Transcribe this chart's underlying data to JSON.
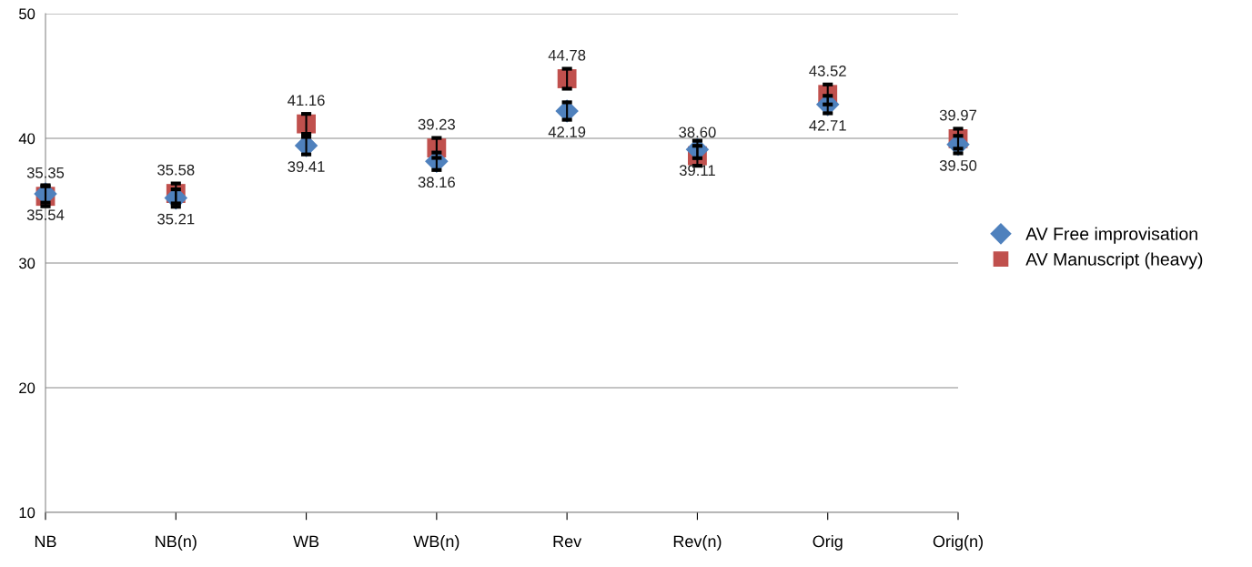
{
  "chart_data": {
    "type": "scatter",
    "categories": [
      "NB",
      "NB(n)",
      "WB",
      "WB(n)",
      "Rev",
      "Rev(n)",
      "Orig",
      "Orig(n)"
    ],
    "series": [
      {
        "name": "AV Manuscript (heavy)",
        "color": "#c0504d",
        "marker": "square",
        "values": [
          35.35,
          35.58,
          41.16,
          39.23,
          44.78,
          38.6,
          43.52,
          39.97
        ],
        "errors": [
          0.8,
          0.8,
          0.8,
          0.8,
          0.8,
          0.8,
          0.8,
          0.8
        ],
        "value_labels": [
          "35.35",
          "35.58",
          "41.16",
          "39.23",
          "44.78",
          "38.60",
          "43.52",
          "39.97"
        ]
      },
      {
        "name": "AV Free improvisation",
        "color": "#4f81bd",
        "marker": "diamond",
        "values": [
          35.54,
          35.21,
          39.41,
          38.16,
          42.19,
          39.11,
          42.71,
          39.5
        ],
        "errors": [
          0.7,
          0.7,
          0.7,
          0.7,
          0.7,
          0.7,
          0.7,
          0.7
        ],
        "value_labels": [
          "35.54",
          "35.21",
          "39.41",
          "38.16",
          "42.19",
          "39.11",
          "42.71",
          "39.50"
        ]
      }
    ],
    "ylim": [
      10,
      50
    ],
    "yticks": [
      10,
      20,
      30,
      40,
      50
    ],
    "grid": "y",
    "legend": "right"
  }
}
